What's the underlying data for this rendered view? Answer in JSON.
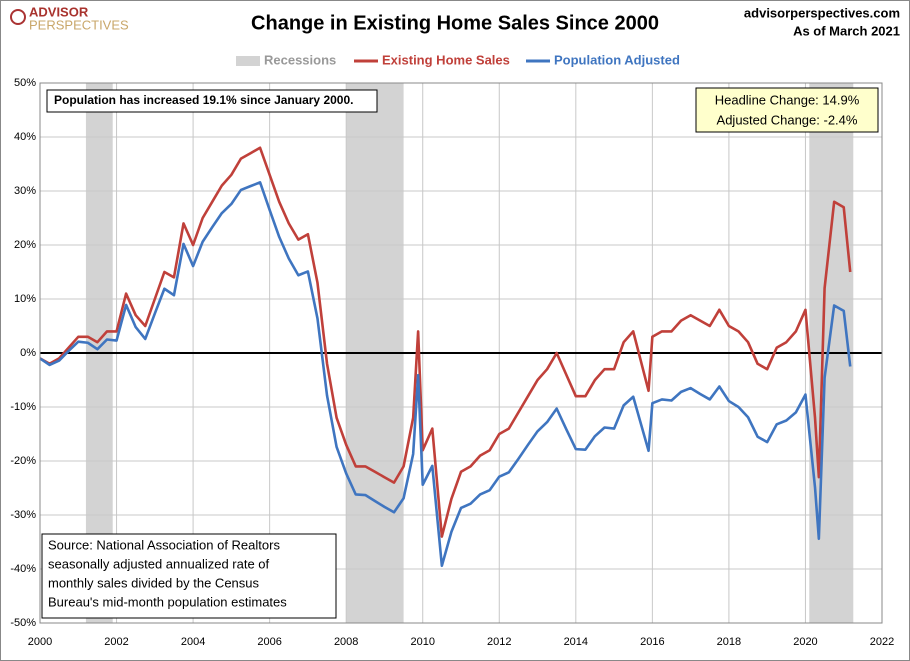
{
  "chart_data": {
    "type": "line",
    "title": "Change in Existing Home Sales Since 2000",
    "brand": [
      "ADVISOR",
      "PERSPECTIVES"
    ],
    "site": "advisorperspectives.com",
    "asof": "As of March 2021",
    "recession_label": "Recessions",
    "recession_color": "#d3d3d3",
    "recessions": [
      [
        2001.2,
        2001.9
      ],
      [
        2008.0,
        2009.5
      ],
      [
        2020.1,
        2021.25
      ]
    ],
    "note": "Population has increased 19.1% since January 2000.",
    "headline": [
      "Headline Change: 14.9%",
      "Adjusted Change: -2.4%"
    ],
    "source": [
      "Source: National Association of Realtors",
      "seasonally adjusted annualized rate of",
      "monthly  sales divided by the Census",
      "Bureau's mid-month  population estimates"
    ],
    "grid": true,
    "x": [
      2000.0,
      2000.25,
      2000.5,
      2000.75,
      2001.0,
      2001.25,
      2001.5,
      2001.75,
      2002.0,
      2002.25,
      2002.5,
      2002.75,
      2003.0,
      2003.25,
      2003.5,
      2003.75,
      2004.0,
      2004.25,
      2004.5,
      2004.75,
      2005.0,
      2005.25,
      2005.5,
      2005.75,
      2006.0,
      2006.25,
      2006.5,
      2006.75,
      2007.0,
      2007.25,
      2007.5,
      2007.75,
      2008.0,
      2008.25,
      2008.5,
      2008.75,
      2009.0,
      2009.25,
      2009.5,
      2009.75,
      2009.88,
      2010.0,
      2010.25,
      2010.5,
      2010.75,
      2011.0,
      2011.25,
      2011.5,
      2011.75,
      2012.0,
      2012.25,
      2012.5,
      2012.75,
      2013.0,
      2013.25,
      2013.5,
      2013.75,
      2014.0,
      2014.25,
      2014.5,
      2014.75,
      2015.0,
      2015.25,
      2015.5,
      2015.9,
      2016.0,
      2016.25,
      2016.5,
      2016.75,
      2017.0,
      2017.25,
      2017.5,
      2017.75,
      2018.0,
      2018.25,
      2018.5,
      2018.75,
      2019.0,
      2019.25,
      2019.5,
      2019.75,
      2020.0,
      2020.25,
      2020.35,
      2020.5,
      2020.75,
      2021.0,
      2021.17
    ],
    "series": [
      {
        "name": "Existing Home Sales",
        "color": "#c0403a",
        "values": [
          -1,
          -2,
          -1,
          1,
          3,
          3,
          2,
          4,
          4,
          11,
          7,
          5,
          10,
          15,
          14,
          24,
          20,
          25,
          28,
          31,
          33,
          36,
          37,
          38,
          33,
          28,
          24,
          21,
          22,
          13,
          -2,
          -12,
          -17,
          -21,
          -21,
          -22,
          -23,
          -24,
          -21,
          -12,
          4,
          -18,
          -14,
          -34,
          -27,
          -22,
          -21,
          -19,
          -18,
          -15,
          -14,
          -11,
          -8,
          -5,
          -3,
          0,
          -4,
          -8,
          -8,
          -5,
          -3,
          -3,
          2,
          4,
          -7,
          3,
          4,
          4,
          6,
          7,
          6,
          5,
          8,
          5,
          4,
          2,
          -2,
          -3,
          1,
          2,
          4,
          8,
          -12,
          -23,
          12,
          28,
          27,
          15
        ]
      },
      {
        "name": "Population Adjusted",
        "color": "#3f75c0",
        "values": [
          -1,
          -2.2,
          -1.4,
          0.4,
          2.1,
          1.9,
          0.7,
          2.5,
          2.3,
          8.9,
          4.8,
          2.6,
          7.3,
          11.9,
          10.7,
          20.2,
          16.1,
          20.6,
          23.3,
          25.9,
          27.6,
          30.2,
          30.9,
          31.6,
          26.5,
          21.5,
          17.5,
          14.4,
          15.1,
          6.4,
          -7.9,
          -17.4,
          -22.3,
          -26.2,
          -26.3,
          -27.4,
          -28.5,
          -29.5,
          -26.9,
          -18.7,
          -4.1,
          -24.4,
          -20.9,
          -39.4,
          -33.1,
          -28.7,
          -27.9,
          -26.2,
          -25.4,
          -22.9,
          -22.1,
          -19.6,
          -17.0,
          -14.5,
          -12.8,
          -10.3,
          -14.1,
          -17.8,
          -17.9,
          -15.4,
          -13.8,
          -14.0,
          -9.7,
          -8.1,
          -18.1,
          -9.3,
          -8.6,
          -8.8,
          -7.2,
          -6.5,
          -7.6,
          -8.6,
          -6.2,
          -8.9,
          -10.0,
          -11.9,
          -15.5,
          -16.5,
          -13.2,
          -12.5,
          -11.0,
          -7.7,
          -24.9,
          -34.4,
          -4.6,
          8.8,
          7.8,
          -2.5
        ]
      }
    ],
    "xlim": [
      2000,
      2022
    ],
    "xticks": [
      2000,
      2002,
      2004,
      2006,
      2008,
      2010,
      2012,
      2014,
      2016,
      2018,
      2020,
      2022
    ],
    "ylim": [
      -50,
      50
    ],
    "yticks": [
      {
        "value": -50,
        "label": "-50%"
      },
      {
        "value": -40,
        "label": "-40%"
      },
      {
        "value": -30,
        "label": "-30%"
      },
      {
        "value": -20,
        "label": "-20%"
      },
      {
        "value": -10,
        "label": "-10%"
      },
      {
        "value": 0,
        "label": "0%"
      },
      {
        "value": 10,
        "label": "10%"
      },
      {
        "value": 20,
        "label": "20%"
      },
      {
        "value": 30,
        "label": "30%"
      },
      {
        "value": 40,
        "label": "40%"
      },
      {
        "value": 50,
        "label": "50%"
      }
    ]
  }
}
